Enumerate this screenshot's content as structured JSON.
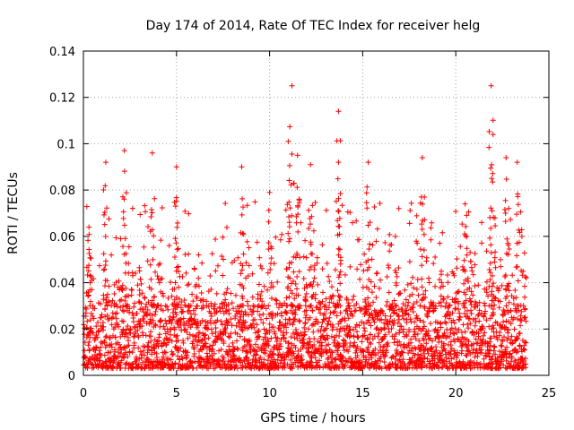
{
  "chart_data": {
    "type": "scatter",
    "title": "Day 174 of 2014, Rate Of TEC Index for receiver helg",
    "xlabel": "GPS time / hours",
    "ylabel": "ROTI / TECUs",
    "xlim": [
      0,
      25
    ],
    "ylim": [
      0,
      0.14
    ],
    "xticks": [
      0,
      5,
      10,
      15,
      20,
      25
    ],
    "xtick_labels": [
      "0",
      "5",
      "10",
      "15",
      "20",
      "25"
    ],
    "yticks": [
      0,
      0.02,
      0.04,
      0.06,
      0.08,
      0.1,
      0.12,
      0.14
    ],
    "ytick_labels": [
      "0",
      "0.02",
      "0.04",
      "0.06",
      "0.08",
      "0.1",
      "0.12",
      "0.14"
    ],
    "grid": true,
    "marker": "+",
    "color": "#ff0000",
    "x_range_hours": [
      0,
      23.8
    ],
    "series": [
      {
        "name": "ROTI",
        "notable_points": [
          {
            "x": 0.3,
            "y": 0.064
          },
          {
            "x": 1.2,
            "y": 0.092
          },
          {
            "x": 2.2,
            "y": 0.097
          },
          {
            "x": 3.7,
            "y": 0.096
          },
          {
            "x": 5.0,
            "y": 0.09
          },
          {
            "x": 8.5,
            "y": 0.09
          },
          {
            "x": 10.0,
            "y": 0.079
          },
          {
            "x": 11.0,
            "y": 0.101
          },
          {
            "x": 11.2,
            "y": 0.125
          },
          {
            "x": 11.5,
            "y": 0.095
          },
          {
            "x": 12.2,
            "y": 0.091
          },
          {
            "x": 13.7,
            "y": 0.114
          },
          {
            "x": 13.7,
            "y": 0.092
          },
          {
            "x": 15.3,
            "y": 0.092
          },
          {
            "x": 18.2,
            "y": 0.094
          },
          {
            "x": 20.5,
            "y": 0.074
          },
          {
            "x": 21.9,
            "y": 0.125
          },
          {
            "x": 22.0,
            "y": 0.104
          },
          {
            "x": 22.7,
            "y": 0.094
          },
          {
            "x": 23.3,
            "y": 0.092
          }
        ],
        "dense_band": {
          "y_min": 0.003,
          "y_max": 0.03,
          "description": "continuous dense cluster across all hours"
        }
      }
    ]
  }
}
